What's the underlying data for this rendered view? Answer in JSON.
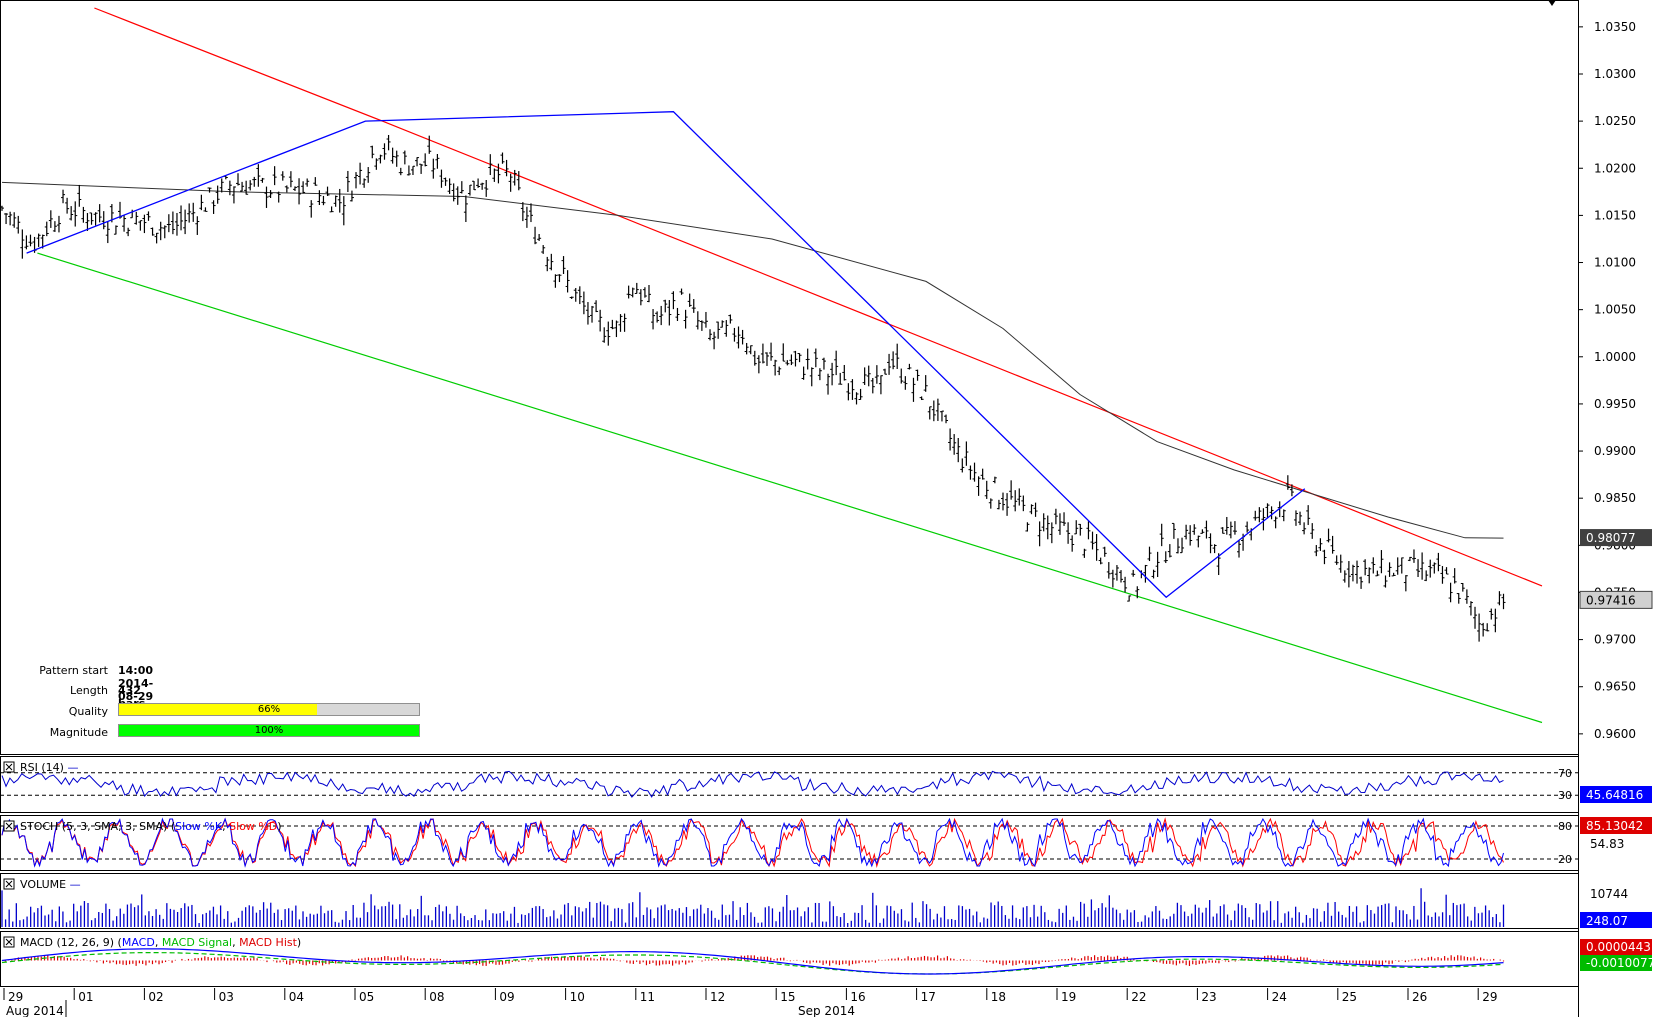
{
  "colors": {
    "price": "#000000",
    "ma": "#333333",
    "upper_channel": "#ff0000",
    "lower_channel": "#00cc00",
    "zigzag": "#0000ff",
    "rsi": "#0000cc",
    "stoch_k": "#0000ff",
    "stoch_d": "#ff0000",
    "volume": "#0000cc",
    "macd": "#0000ff",
    "macd_signal": "#00bb00",
    "macd_hist": "#dd0000",
    "quality_fill": "#ffff00",
    "magnitude_fill": "#00ff00",
    "label_dark": "#404040",
    "label_blue": "#0000ff"
  },
  "pattern_info": {
    "start_label": "Pattern start",
    "start_value": "14:00 2014-08-29",
    "length_label": "Length",
    "length_value": "432 bars",
    "quality_label": "Quality",
    "quality_value": "66%",
    "quality_fraction": 0.66,
    "magnitude_label": "Magnitude",
    "magnitude_value": "100%",
    "magnitude_fraction": 1.0
  },
  "panels": {
    "rsi_title": "RSI (14)",
    "rsi_value": "45.64816",
    "rsi_levels": [
      "70",
      "30"
    ],
    "stoch_title": "STOCH (5, 3, SMA, 3, SMA)",
    "stoch_k_name": "Slow %K",
    "stoch_d_name": "Slow %D",
    "stoch_value": "85.13042",
    "stoch_second": "54.83",
    "stoch_levels": [
      "80",
      "20"
    ],
    "volume_title": "VOLUME",
    "volume_tick": "10744",
    "volume_value": "248.07",
    "macd_title": "MACD (12, 26, 9)",
    "macd_names": [
      "MACD",
      "MACD Signal",
      "MACD Hist"
    ],
    "macd_value": "0.0000443",
    "macd_signal_value": "-0.0010077"
  },
  "chart_data": {
    "type": "ohlc",
    "y_ticks": [
      "1.0350",
      "1.0300",
      "1.0250",
      "1.0200",
      "1.0150",
      "1.0100",
      "1.0050",
      "1.0000",
      "0.9950",
      "0.9900",
      "0.9850",
      "0.9800",
      "0.9750",
      "0.9700",
      "0.9650",
      "0.9600"
    ],
    "ylim": [
      0.9585,
      1.037
    ],
    "last_price": "0.97416",
    "ma_value": "0.98077",
    "x_day_labels": [
      "29",
      "01",
      "02",
      "03",
      "04",
      "05",
      "08",
      "09",
      "10",
      "11",
      "12",
      "15",
      "16",
      "17",
      "18",
      "19",
      "22",
      "23",
      "24",
      "25",
      "26",
      "29"
    ],
    "x_month_labels": [
      "Aug 2014",
      "Sep 2014"
    ],
    "zigzag": [
      [
        0.0,
        1.011
      ],
      [
        0.22,
        1.025
      ],
      [
        0.42,
        1.026
      ],
      [
        0.74,
        0.9745
      ],
      [
        0.83,
        0.986
      ]
    ],
    "price_path": [
      [
        0.0,
        1.0158
      ],
      [
        0.02,
        1.012
      ],
      [
        0.04,
        1.016
      ],
      [
        0.06,
        1.015
      ],
      [
        0.09,
        1.0145
      ],
      [
        0.11,
        1.0135
      ],
      [
        0.13,
        1.016
      ],
      [
        0.15,
        1.0185
      ],
      [
        0.17,
        1.018
      ],
      [
        0.2,
        1.0175
      ],
      [
        0.22,
        1.0165
      ],
      [
        0.245,
        1.0225
      ],
      [
        0.26,
        1.0205
      ],
      [
        0.28,
        1.0205
      ],
      [
        0.3,
        1.017
      ],
      [
        0.31,
        1.019
      ],
      [
        0.33,
        1.0195
      ],
      [
        0.34,
        1.015
      ],
      [
        0.355,
        1.011
      ],
      [
        0.37,
        1.007
      ],
      [
        0.385,
        1.0035
      ],
      [
        0.4,
        1.003
      ],
      [
        0.41,
        1.008
      ],
      [
        0.425,
        1.004
      ],
      [
        0.44,
        1.006
      ],
      [
        0.46,
        1.002
      ],
      [
        0.48,
        1.003
      ],
      [
        0.49,
        0.9995
      ],
      [
        0.51,
        0.9995
      ],
      [
        0.525,
        0.999
      ],
      [
        0.55,
        0.9975
      ],
      [
        0.57,
        0.9965
      ],
      [
        0.575,
        1.0
      ],
      [
        0.6,
        0.996
      ],
      [
        0.62,
        0.99
      ],
      [
        0.635,
        0.987
      ],
      [
        0.66,
        0.984
      ],
      [
        0.68,
        0.982
      ],
      [
        0.7,
        0.981
      ],
      [
        0.72,
        0.978
      ],
      [
        0.735,
        0.9755
      ],
      [
        0.75,
        0.979
      ],
      [
        0.77,
        0.9815
      ],
      [
        0.79,
        0.98
      ],
      [
        0.81,
        0.982
      ],
      [
        0.835,
        0.985
      ],
      [
        0.85,
        0.981
      ],
      [
        0.87,
        0.978
      ],
      [
        0.89,
        0.977
      ],
      [
        0.91,
        0.9775
      ],
      [
        0.93,
        0.977
      ],
      [
        0.945,
        0.9755
      ],
      [
        0.96,
        0.9715
      ],
      [
        0.975,
        0.974
      ]
    ],
    "moving_average": [
      [
        0.0,
        1.0185
      ],
      [
        0.15,
        1.0175
      ],
      [
        0.3,
        1.017
      ],
      [
        0.4,
        1.015
      ],
      [
        0.5,
        1.0125
      ],
      [
        0.6,
        1.008
      ],
      [
        0.65,
        1.003
      ],
      [
        0.7,
        0.996
      ],
      [
        0.75,
        0.991
      ],
      [
        0.8,
        0.988
      ],
      [
        0.85,
        0.9855
      ],
      [
        0.9,
        0.983
      ],
      [
        0.95,
        0.9808
      ],
      [
        0.975,
        0.98077
      ]
    ],
    "upper_channel": [
      [
        0.06,
        1.037
      ],
      [
        0.247,
        1.025
      ],
      [
        1.0,
        0.9757
      ]
    ],
    "lower_channel": [
      [
        0.023,
        1.011
      ],
      [
        1.0,
        0.9612
      ]
    ]
  }
}
